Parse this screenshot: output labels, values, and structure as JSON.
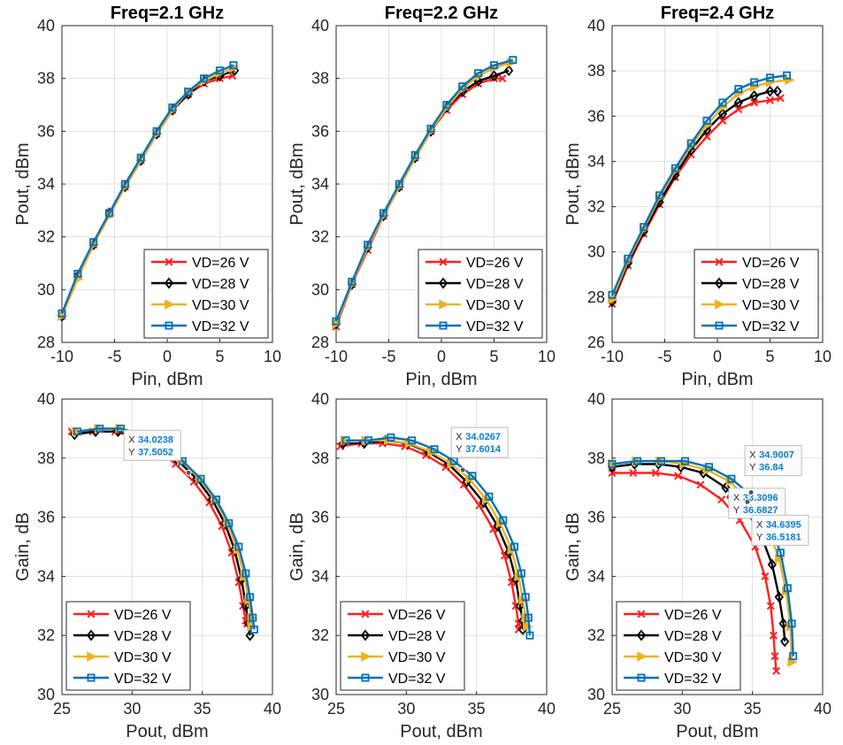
{
  "colors": {
    "VD=26 V": "#ff1f1f",
    "VD=28 V": "#000000",
    "VD=30 V": "#edb120",
    "VD=32 V": "#0072bd",
    "grid": "#dfdfdf",
    "axis": "#262626",
    "datatip_value": "#0a7fd6"
  },
  "series_markers": [
    "x",
    "diamond",
    "triangle-right",
    "square"
  ],
  "chart_data": [
    {
      "type": "line",
      "title": "Freq=2.1 GHz",
      "xlabel": "Pin, dBm",
      "ylabel": "Pout, dBm",
      "xlim": [
        -10,
        10
      ],
      "ylim": [
        28,
        40
      ],
      "xticks": [
        -10,
        -5,
        0,
        5,
        10
      ],
      "yticks": [
        28,
        30,
        32,
        34,
        36,
        38,
        40
      ],
      "grid": true,
      "legend": "bottom-right",
      "series": [
        {
          "name": "VD=26 V",
          "x": [
            -10,
            -8.5,
            -7,
            -5.5,
            -4,
            -2.5,
            -1,
            0.5,
            2,
            3.5,
            5,
            6.2
          ],
          "y": [
            29.0,
            30.5,
            31.7,
            32.9,
            33.9,
            34.9,
            35.9,
            36.8,
            37.4,
            37.8,
            38.0,
            38.1
          ]
        },
        {
          "name": "VD=28 V",
          "x": [
            -10,
            -8.5,
            -7,
            -5.5,
            -4,
            -2.5,
            -1,
            0.5,
            2,
            3.5,
            5,
            6.4
          ],
          "y": [
            29.0,
            30.5,
            31.7,
            32.9,
            33.9,
            34.9,
            35.9,
            36.8,
            37.4,
            37.9,
            38.1,
            38.3
          ]
        },
        {
          "name": "VD=30 V",
          "x": [
            -10,
            -8.5,
            -7,
            -5.5,
            -4,
            -2.5,
            -1,
            0.5,
            2,
            3.5,
            5,
            6.3
          ],
          "y": [
            29.0,
            30.4,
            31.7,
            32.8,
            33.9,
            34.9,
            35.9,
            36.8,
            37.5,
            37.9,
            38.2,
            38.4
          ]
        },
        {
          "name": "VD=32 V",
          "x": [
            -10,
            -8.5,
            -7,
            -5.5,
            -4,
            -2.5,
            -1,
            0.5,
            2,
            3.5,
            5,
            6.3
          ],
          "y": [
            29.1,
            30.6,
            31.8,
            32.9,
            34.0,
            35.0,
            36.0,
            36.9,
            37.5,
            38.0,
            38.3,
            38.5
          ]
        }
      ]
    },
    {
      "type": "line",
      "title": "Freq=2.2 GHz",
      "xlabel": "Pin, dBm",
      "ylabel": "Pout, dBm",
      "xlim": [
        -10,
        10
      ],
      "ylim": [
        28,
        40
      ],
      "xticks": [
        -10,
        -5,
        0,
        5,
        10
      ],
      "yticks": [
        28,
        30,
        32,
        34,
        36,
        38,
        40
      ],
      "grid": true,
      "legend": "bottom-right",
      "series": [
        {
          "name": "VD=26 V",
          "x": [
            -10,
            -8.5,
            -7,
            -5.5,
            -4,
            -2.5,
            -1,
            0.5,
            2,
            3.5,
            5,
            5.8
          ],
          "y": [
            28.6,
            30.2,
            31.5,
            32.8,
            33.9,
            35.0,
            36.0,
            36.8,
            37.4,
            37.8,
            38.0,
            38.0
          ]
        },
        {
          "name": "VD=28 V",
          "x": [
            -10,
            -8.5,
            -7,
            -5.5,
            -4,
            -2.5,
            -1,
            0.5,
            2,
            3.5,
            5,
            6.4
          ],
          "y": [
            28.7,
            30.2,
            31.6,
            32.8,
            33.9,
            35.0,
            36.0,
            36.9,
            37.5,
            37.9,
            38.1,
            38.3
          ]
        },
        {
          "name": "VD=30 V",
          "x": [
            -10,
            -8.5,
            -7,
            -5.5,
            -4,
            -2.5,
            -1,
            0.5,
            2,
            3.5,
            5,
            6.6
          ],
          "y": [
            28.7,
            30.2,
            31.6,
            32.8,
            33.9,
            35.0,
            36.0,
            36.9,
            37.6,
            38.1,
            38.4,
            38.6
          ]
        },
        {
          "name": "VD=32 V",
          "x": [
            -10,
            -8.5,
            -7,
            -5.5,
            -4,
            -2.5,
            -1,
            0.5,
            2,
            3.5,
            5,
            6.8
          ],
          "y": [
            28.8,
            30.3,
            31.7,
            32.9,
            34.0,
            35.1,
            36.1,
            37.0,
            37.7,
            38.2,
            38.5,
            38.7
          ]
        }
      ]
    },
    {
      "type": "line",
      "title": "Freq=2.4 GHz",
      "xlabel": "Pin, dBm",
      "ylabel": "Pout, dBm",
      "xlim": [
        -10,
        10
      ],
      "ylim": [
        26,
        40
      ],
      "xticks": [
        -10,
        -5,
        0,
        5,
        10
      ],
      "yticks": [
        26,
        28,
        30,
        32,
        34,
        36,
        38,
        40
      ],
      "grid": true,
      "legend": "bottom-right",
      "series": [
        {
          "name": "VD=26 V",
          "x": [
            -10,
            -8.5,
            -7,
            -5.5,
            -4,
            -2.5,
            -1,
            0.5,
            2,
            3.5,
            5,
            6.0
          ],
          "y": [
            27.7,
            29.4,
            30.8,
            32.1,
            33.3,
            34.3,
            35.1,
            35.8,
            36.3,
            36.6,
            36.7,
            36.8
          ]
        },
        {
          "name": "VD=28 V",
          "x": [
            -10,
            -8.5,
            -7,
            -5.5,
            -4,
            -2.5,
            -1,
            0.5,
            2,
            3.5,
            5,
            5.7
          ],
          "y": [
            27.8,
            29.5,
            30.9,
            32.2,
            33.4,
            34.5,
            35.4,
            36.1,
            36.6,
            36.9,
            37.1,
            37.1
          ]
        },
        {
          "name": "VD=30 V",
          "x": [
            -10,
            -8.5,
            -7,
            -5.5,
            -4,
            -2.5,
            -1,
            0.5,
            2,
            3.5,
            5,
            6.8
          ],
          "y": [
            27.9,
            29.6,
            31.0,
            32.4,
            33.6,
            34.7,
            35.6,
            36.4,
            37.0,
            37.3,
            37.5,
            37.6
          ]
        },
        {
          "name": "VD=32 V",
          "x": [
            -10,
            -8.5,
            -7,
            -5.5,
            -4,
            -2.5,
            -1,
            0.5,
            2,
            3.5,
            5,
            6.6
          ],
          "y": [
            28.1,
            29.7,
            31.1,
            32.5,
            33.7,
            34.8,
            35.8,
            36.6,
            37.2,
            37.5,
            37.7,
            37.8
          ]
        }
      ]
    },
    {
      "type": "line",
      "title": "",
      "xlabel": "Pout, dBm",
      "ylabel": "Gain, dB",
      "xlim": [
        25,
        40
      ],
      "ylim": [
        30,
        40
      ],
      "xticks": [
        25,
        30,
        35,
        40
      ],
      "yticks": [
        30,
        32,
        34,
        36,
        38,
        40
      ],
      "grid": true,
      "legend": "bottom-left",
      "datatips": [
        {
          "x": 34.0238,
          "y": 37.5052,
          "x_text": "34.0238",
          "y_text": "37.5052"
        }
      ],
      "series": [
        {
          "name": "VD=26 V",
          "x": [
            25.7,
            27.2,
            28.8,
            30.3,
            31.8,
            33.1,
            34.4,
            35.5,
            36.4,
            37.1,
            37.6,
            37.9,
            38.1,
            38.2
          ],
          "y": [
            38.9,
            38.9,
            38.9,
            38.7,
            38.3,
            37.8,
            37.2,
            36.5,
            35.7,
            34.8,
            33.8,
            33.0,
            32.5,
            32.4
          ]
        },
        {
          "name": "VD=28 V",
          "x": [
            25.9,
            27.4,
            29.0,
            30.5,
            32.0,
            33.3,
            34.6,
            35.7,
            36.6,
            37.3,
            37.8,
            38.1,
            38.3,
            38.4
          ],
          "y": [
            38.8,
            38.9,
            38.9,
            38.7,
            38.4,
            37.9,
            37.3,
            36.6,
            35.8,
            34.9,
            33.9,
            33.0,
            32.4,
            32.0
          ]
        },
        {
          "name": "VD=30 V",
          "x": [
            26.0,
            27.6,
            29.1,
            30.6,
            32.1,
            33.5,
            34.8,
            35.9,
            36.8,
            37.5,
            38.0,
            38.3,
            38.5,
            38.5
          ],
          "y": [
            38.9,
            39.0,
            39.0,
            38.8,
            38.4,
            37.9,
            37.3,
            36.6,
            35.8,
            34.9,
            34.0,
            33.2,
            32.6,
            32.3
          ]
        },
        {
          "name": "VD=32 V",
          "x": [
            26.1,
            27.7,
            29.2,
            30.7,
            32.2,
            33.6,
            34.9,
            36.0,
            36.9,
            37.6,
            38.1,
            38.4,
            38.6,
            38.7
          ],
          "y": [
            38.9,
            39.0,
            39.0,
            38.8,
            38.4,
            37.9,
            37.3,
            36.6,
            35.8,
            35.0,
            34.1,
            33.3,
            32.6,
            32.2
          ]
        }
      ]
    },
    {
      "type": "line",
      "title": "",
      "xlabel": "Pout, dBm",
      "ylabel": "Gain, dB",
      "xlim": [
        25,
        40
      ],
      "ylim": [
        30,
        40
      ],
      "xticks": [
        25,
        30,
        35,
        40
      ],
      "yticks": [
        30,
        32,
        34,
        36,
        38,
        40
      ],
      "grid": true,
      "legend": "bottom-left",
      "datatips": [
        {
          "x": 34.0267,
          "y": 37.6014,
          "x_text": "34.0267",
          "y_text": "37.6014"
        }
      ],
      "series": [
        {
          "name": "VD=26 V",
          "x": [
            25.3,
            26.8,
            28.3,
            29.9,
            31.4,
            32.8,
            34.1,
            35.2,
            36.2,
            37.0,
            37.5,
            37.8,
            38.0,
            38.0
          ],
          "y": [
            38.4,
            38.5,
            38.5,
            38.4,
            38.1,
            37.7,
            37.1,
            36.4,
            35.6,
            34.7,
            33.8,
            33.0,
            32.4,
            32.2
          ]
        },
        {
          "name": "VD=28 V",
          "x": [
            25.5,
            27.0,
            28.5,
            30.1,
            31.6,
            33.0,
            34.3,
            35.5,
            36.5,
            37.3,
            37.8,
            38.1,
            38.3,
            38.3
          ],
          "y": [
            38.5,
            38.5,
            38.6,
            38.5,
            38.2,
            37.8,
            37.2,
            36.5,
            35.7,
            34.8,
            33.9,
            33.0,
            32.5,
            32.2
          ]
        },
        {
          "name": "VD=30 V",
          "x": [
            25.6,
            27.1,
            28.7,
            30.2,
            31.8,
            33.2,
            34.5,
            35.7,
            36.7,
            37.5,
            38.0,
            38.3,
            38.5,
            38.6
          ],
          "y": [
            38.6,
            38.6,
            38.6,
            38.5,
            38.2,
            37.8,
            37.3,
            36.6,
            35.8,
            34.9,
            34.0,
            33.2,
            32.6,
            32.3
          ]
        },
        {
          "name": "VD=32 V",
          "x": [
            25.7,
            27.3,
            28.9,
            30.4,
            32.0,
            33.4,
            34.7,
            35.9,
            36.9,
            37.7,
            38.2,
            38.5,
            38.7,
            38.8
          ],
          "y": [
            38.6,
            38.6,
            38.7,
            38.6,
            38.3,
            37.9,
            37.4,
            36.7,
            35.9,
            35.0,
            34.1,
            33.3,
            32.6,
            32.0
          ]
        }
      ]
    },
    {
      "type": "line",
      "title": "",
      "xlabel": "Pout, dBm",
      "ylabel": "Gain, dB",
      "xlim": [
        25,
        40
      ],
      "ylim": [
        30,
        40
      ],
      "xticks": [
        25,
        30,
        35,
        40
      ],
      "yticks": [
        30,
        32,
        34,
        36,
        38,
        40
      ],
      "grid": true,
      "legend": "bottom-left",
      "datatips": [
        {
          "x": 33.3096,
          "y": 36.6827,
          "x_text": "33.3096",
          "y_text": "36.6827"
        },
        {
          "x": 34.9007,
          "y": 36.84,
          "x_text": "34.9007",
          "y_text": "36.84"
        },
        {
          "x": 34.6395,
          "y": 36.5181,
          "x_text": "34.6395",
          "y_text": "36.5181"
        }
      ],
      "series": [
        {
          "name": "VD=26 V",
          "x": [
            25.0,
            26.5,
            28.1,
            29.7,
            31.3,
            32.8,
            34.1,
            35.2,
            35.9,
            36.3,
            36.5,
            36.6,
            36.7
          ],
          "y": [
            37.5,
            37.5,
            37.5,
            37.4,
            37.1,
            36.6,
            35.9,
            35.0,
            34.0,
            33.0,
            32.0,
            31.3,
            30.8
          ]
        },
        {
          "name": "VD=28 V",
          "x": [
            25.0,
            26.6,
            28.3,
            29.9,
            31.5,
            33.1,
            34.5,
            35.6,
            36.4,
            36.9,
            37.2,
            37.3
          ],
          "y": [
            37.7,
            37.8,
            37.8,
            37.7,
            37.5,
            37.0,
            36.3,
            35.4,
            34.4,
            33.3,
            32.4,
            31.8
          ]
        },
        {
          "name": "VD=30 V",
          "x": [
            25.0,
            26.7,
            28.4,
            30.1,
            31.8,
            33.4,
            34.9,
            36.1,
            36.9,
            37.4,
            37.7,
            37.8
          ],
          "y": [
            37.8,
            37.9,
            37.9,
            37.8,
            37.6,
            37.2,
            36.5,
            35.6,
            34.6,
            33.5,
            32.3,
            31.1
          ]
        },
        {
          "name": "VD=32 V",
          "x": [
            25.0,
            26.8,
            28.5,
            30.2,
            31.9,
            33.5,
            35.0,
            36.2,
            37.0,
            37.5,
            37.8,
            37.9
          ],
          "y": [
            37.8,
            37.9,
            37.9,
            37.9,
            37.7,
            37.3,
            36.7,
            35.8,
            34.8,
            33.6,
            32.4,
            31.3
          ]
        }
      ]
    }
  ]
}
